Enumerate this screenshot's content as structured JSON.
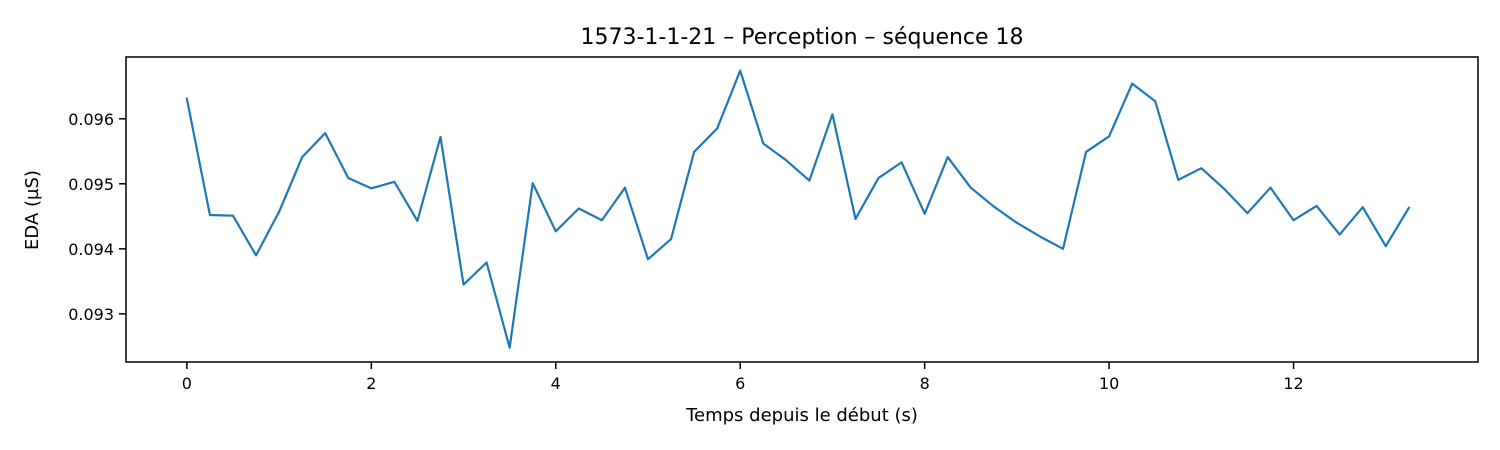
{
  "chart_data": {
    "type": "line",
    "title": "1573-1-1-21 – Perception – séquence 18",
    "xlabel": "Temps depuis le début (s)",
    "ylabel": "EDA (µS)",
    "xlim": [
      -0.66,
      14.0
    ],
    "ylim": [
      0.09226,
      0.09695
    ],
    "xticks": [
      0,
      2,
      4,
      6,
      8,
      10,
      12
    ],
    "xtick_labels": [
      "0",
      "2",
      "4",
      "6",
      "8",
      "10",
      "12"
    ],
    "yticks": [
      0.093,
      0.094,
      0.095,
      0.096
    ],
    "ytick_labels": [
      "0.093",
      "0.094",
      "0.095",
      "0.096"
    ],
    "grid": false,
    "series": [
      {
        "color": "#1f77b4",
        "x": [
          0,
          0.25,
          0.5,
          0.75,
          1.0,
          1.25,
          1.5,
          1.75,
          2.0,
          2.25,
          2.5,
          2.75,
          3.0,
          3.25,
          3.5,
          3.75,
          4.0,
          4.25,
          4.5,
          4.75,
          5.0,
          5.25,
          5.5,
          5.75,
          6.0,
          6.25,
          6.5,
          6.75,
          7.0,
          7.25,
          7.5,
          7.75,
          8.0,
          8.25,
          8.5,
          8.75,
          9.0,
          9.25,
          9.5,
          9.75,
          10.0,
          10.25,
          10.5,
          10.75,
          11.0,
          11.25,
          11.5,
          11.75,
          12.0,
          12.25,
          12.5,
          12.75,
          13.0,
          13.25
        ],
        "y": [
          0.09631,
          0.09452,
          0.09451,
          0.0939,
          0.09457,
          0.09541,
          0.09578,
          0.09509,
          0.09493,
          0.09503,
          0.09443,
          0.09572,
          0.09345,
          0.09379,
          0.09248,
          0.09501,
          0.09427,
          0.09462,
          0.09444,
          0.09494,
          0.09384,
          0.09415,
          0.09549,
          0.09585,
          0.09674,
          0.09562,
          0.09536,
          0.09505,
          0.09607,
          0.09446,
          0.09509,
          0.09533,
          0.09454,
          0.09541,
          0.09494,
          0.09465,
          0.0944,
          0.09419,
          0.094,
          0.09549,
          0.09573,
          0.09654,
          0.09627,
          0.09506,
          0.09524,
          0.09492,
          0.09455,
          0.09494,
          0.09444,
          0.09466,
          0.09422,
          0.09464,
          0.09404,
          0.09463
        ]
      }
    ]
  }
}
